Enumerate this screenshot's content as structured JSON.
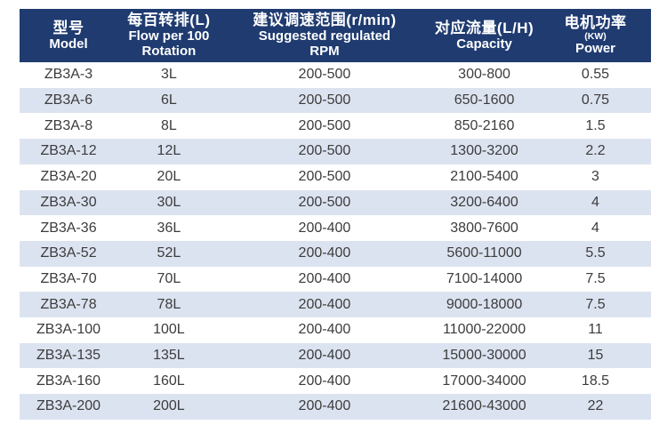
{
  "colors": {
    "header_bg": "#1f3b70",
    "stripe": "#dce3f0",
    "header_text": "#ffffff",
    "body_text": "#3c3c3c"
  },
  "table": {
    "columns": [
      {
        "zh": "型号",
        "en1": "Model"
      },
      {
        "zh": "每百转排(L)",
        "en1": "Flow per 100",
        "en2": "Rotation"
      },
      {
        "zh": "建议调速范围(r/min)",
        "en1": "Suggested regulated",
        "en2": "RPM"
      },
      {
        "zh": "对应流量(L/H)",
        "en1": "Capacity"
      },
      {
        "zh": "电机功率",
        "sub": "(KW)",
        "en1": "Power"
      }
    ],
    "rows": [
      [
        "ZB3A-3",
        "3L",
        "200-500",
        "300-800",
        "0.55"
      ],
      [
        "ZB3A-6",
        "6L",
        "200-500",
        "650-1600",
        "0.75"
      ],
      [
        "ZB3A-8",
        "8L",
        "200-500",
        "850-2160",
        "1.5"
      ],
      [
        "ZB3A-12",
        "12L",
        "200-500",
        "1300-3200",
        "2.2"
      ],
      [
        "ZB3A-20",
        "20L",
        "200-500",
        "2100-5400",
        "3"
      ],
      [
        "ZB3A-30",
        "30L",
        "200-500",
        "3200-6400",
        "4"
      ],
      [
        "ZB3A-36",
        "36L",
        "200-400",
        "3800-7600",
        "4"
      ],
      [
        "ZB3A-52",
        "52L",
        "200-400",
        "5600-11000",
        "5.5"
      ],
      [
        "ZB3A-70",
        "70L",
        "200-400",
        "7100-14000",
        "7.5"
      ],
      [
        "ZB3A-78",
        "78L",
        "200-400",
        "9000-18000",
        "7.5"
      ],
      [
        "ZB3A-100",
        "100L",
        "200-400",
        "11000-22000",
        "11"
      ],
      [
        "ZB3A-135",
        "135L",
        "200-400",
        "15000-30000",
        "15"
      ],
      [
        "ZB3A-160",
        "160L",
        "200-400",
        "17000-34000",
        "18.5"
      ],
      [
        "ZB3A-200",
        "200L",
        "200-400",
        "21600-43000",
        "22"
      ]
    ]
  },
  "chart_data": {
    "type": "table",
    "title": "ZB3A pump model specification table",
    "columns_zh": [
      "型号",
      "每百转排(L)",
      "建议调速范围(r/min)",
      "对应流量(L/H)",
      "电机功率(KW)"
    ],
    "columns_en": [
      "Model",
      "Flow per 100 Rotation",
      "Suggested regulated RPM",
      "Capacity",
      "Power"
    ],
    "rows": [
      [
        "ZB3A-3",
        "3L",
        "200-500",
        "300-800",
        "0.55"
      ],
      [
        "ZB3A-6",
        "6L",
        "200-500",
        "650-1600",
        "0.75"
      ],
      [
        "ZB3A-8",
        "8L",
        "200-500",
        "850-2160",
        "1.5"
      ],
      [
        "ZB3A-12",
        "12L",
        "200-500",
        "1300-3200",
        "2.2"
      ],
      [
        "ZB3A-20",
        "20L",
        "200-500",
        "2100-5400",
        "3"
      ],
      [
        "ZB3A-30",
        "30L",
        "200-500",
        "3200-6400",
        "4"
      ],
      [
        "ZB3A-36",
        "36L",
        "200-400",
        "3800-7600",
        "4"
      ],
      [
        "ZB3A-52",
        "52L",
        "200-400",
        "5600-11000",
        "5.5"
      ],
      [
        "ZB3A-70",
        "70L",
        "200-400",
        "7100-14000",
        "7.5"
      ],
      [
        "ZB3A-78",
        "78L",
        "200-400",
        "9000-18000",
        "7.5"
      ],
      [
        "ZB3A-100",
        "100L",
        "200-400",
        "11000-22000",
        "11"
      ],
      [
        "ZB3A-135",
        "135L",
        "200-400",
        "15000-30000",
        "15"
      ],
      [
        "ZB3A-160",
        "160L",
        "200-400",
        "17000-34000",
        "18.5"
      ],
      [
        "ZB3A-200",
        "200L",
        "200-400",
        "21600-43000",
        "22"
      ]
    ]
  }
}
